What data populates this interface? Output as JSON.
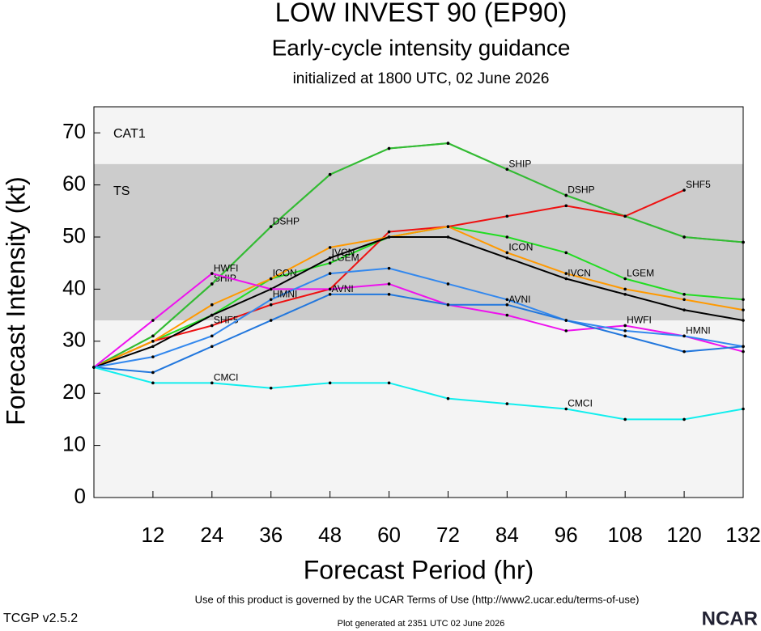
{
  "chart_data": {
    "type": "line",
    "title": "LOW INVEST 90 (EP90)",
    "subtitle": "Early-cycle intensity guidance",
    "initialized": "initialized at 1800 UTC, 02 June 2026",
    "ylabel": "Forecast Intensity (kt)",
    "xlabel": "Forecast Period (hr)",
    "terms": "Use of this product is governed by the UCAR Terms of Use (http://www2.ucar.edu/terms-of-use)",
    "version": "TCGP v2.5.2",
    "generated": "Plot generated at 2351 UTC   02 June 2026",
    "logo": "NCAR",
    "xlim": [
      0,
      132
    ],
    "xticks": [
      12,
      24,
      36,
      48,
      60,
      72,
      84,
      96,
      108,
      120,
      132
    ],
    "ylim": [
      0,
      75
    ],
    "yticks": [
      0,
      10,
      20,
      30,
      40,
      50,
      60,
      70
    ],
    "bands": [
      {
        "label": "CAT1",
        "range": [
          64,
          75
        ],
        "color": "#f4f4f4",
        "text_color": "#cccccc"
      },
      {
        "label": "TS",
        "range": [
          34,
          64
        ],
        "color": "#cccccc",
        "text_color": "#ffffff"
      }
    ],
    "x": [
      0,
      12,
      24,
      36,
      48,
      60,
      72,
      84,
      96,
      108,
      120,
      132
    ],
    "series": [
      {
        "name": "SHIP",
        "color": "#33bb33",
        "values": [
          25,
          31,
          41,
          52,
          62,
          67,
          68,
          63,
          58,
          54,
          50,
          49
        ]
      },
      {
        "name": "DSHP",
        "color": "#33bb33",
        "values": [
          25,
          31,
          41,
          52,
          62,
          67,
          68,
          63,
          58,
          54,
          50,
          49
        ]
      },
      {
        "name": "LGEM",
        "color": "#22dd22",
        "values": [
          25,
          30,
          35,
          42,
          45,
          50,
          52,
          50,
          47,
          42,
          39,
          38
        ]
      },
      {
        "name": "SHF5",
        "color": "#ee1111",
        "values": [
          25,
          30,
          33,
          37,
          40,
          51,
          52,
          54,
          56,
          54,
          59,
          null
        ]
      },
      {
        "name": "ICON",
        "color": "#ff9900",
        "values": [
          25,
          30,
          37,
          42,
          48,
          50,
          52,
          47,
          43,
          40,
          38,
          36
        ]
      },
      {
        "name": "IVCN",
        "color": "#000000",
        "values": [
          25,
          29,
          35,
          40,
          46,
          50,
          50,
          46,
          42,
          39,
          36,
          34
        ]
      },
      {
        "name": "HWFI",
        "color": "#ee11ee",
        "values": [
          25,
          34,
          43,
          40,
          40,
          41,
          37,
          35,
          32,
          33,
          31,
          28
        ]
      },
      {
        "name": "HMNI",
        "color": "#3388ee",
        "values": [
          25,
          27,
          31,
          38,
          43,
          44,
          41,
          38,
          34,
          32,
          31,
          29
        ]
      },
      {
        "name": "AVNI",
        "color": "#2277dd",
        "values": [
          25,
          24,
          29,
          34,
          39,
          39,
          37,
          37,
          34,
          31,
          28,
          29
        ]
      },
      {
        "name": "CMCI",
        "color": "#11eeee",
        "values": [
          25,
          22,
          22,
          21,
          22,
          22,
          19,
          18,
          17,
          15,
          15,
          17
        ]
      }
    ]
  }
}
